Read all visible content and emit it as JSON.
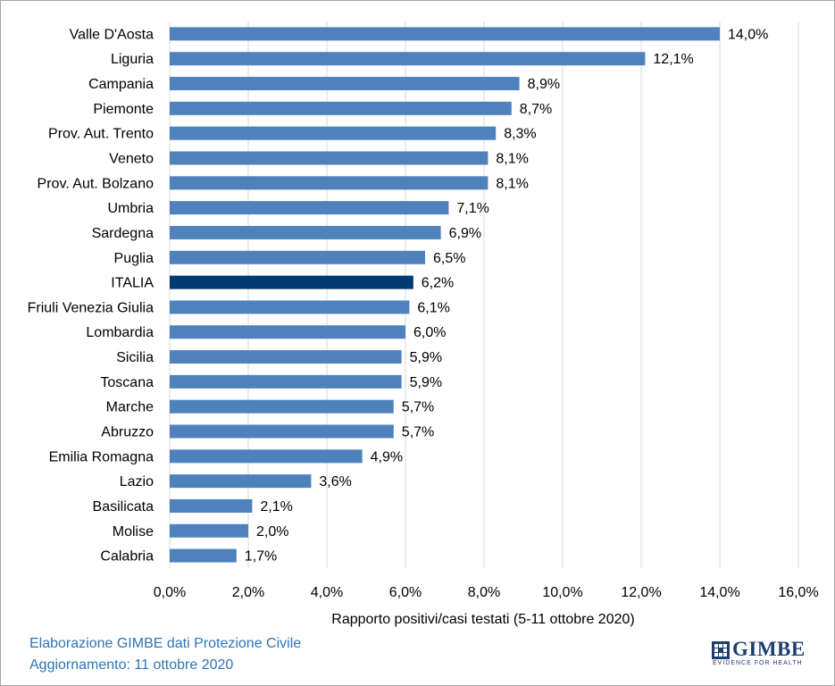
{
  "chart_data": {
    "type": "bar",
    "orientation": "horizontal",
    "categories": [
      "Valle D'Aosta",
      "Liguria",
      "Campania",
      "Piemonte",
      "Prov. Aut. Trento",
      "Veneto",
      "Prov. Aut. Bolzano",
      "Umbria",
      "Sardegna",
      "Puglia",
      "ITALIA",
      "Friuli Venezia Giulia",
      "Lombardia",
      "Sicilia",
      "Toscana",
      "Marche",
      "Abruzzo",
      "Emilia Romagna",
      "Lazio",
      "Basilicata",
      "Molise",
      "Calabria"
    ],
    "values": [
      14.0,
      12.1,
      8.9,
      8.7,
      8.3,
      8.1,
      8.1,
      7.1,
      6.9,
      6.5,
      6.2,
      6.1,
      6.0,
      5.9,
      5.9,
      5.7,
      5.7,
      4.9,
      3.6,
      2.1,
      2.0,
      1.7
    ],
    "data_labels": [
      "14,0%",
      "12,1%",
      "8,9%",
      "8,7%",
      "8,3%",
      "8,1%",
      "8,1%",
      "7,1%",
      "6,9%",
      "6,5%",
      "6,2%",
      "6,1%",
      "6,0%",
      "5,9%",
      "5,9%",
      "5,7%",
      "5,7%",
      "4,9%",
      "3,6%",
      "2,1%",
      "2,0%",
      "1,7%"
    ],
    "highlight_category": "ITALIA",
    "xlabel": "Rapporto positivi/casi testati (5-11 ottobre 2020)",
    "xlim": [
      0,
      16
    ],
    "xticks": [
      0,
      2,
      4,
      6,
      8,
      10,
      12,
      14,
      16
    ],
    "xtick_labels": [
      "0,0%",
      "2,0%",
      "4,0%",
      "6,0%",
      "8,0%",
      "10,0%",
      "12,0%",
      "14,0%",
      "16,0%"
    ],
    "grid": "vertical",
    "colors": {
      "bar": "#4f81bd",
      "highlight": "#003a70",
      "grid": "#d9d9d9",
      "text": "#000000"
    }
  },
  "footer": {
    "line1": "Elaborazione GIMBE dati Protezione Civile",
    "line2": "Aggiornamento: 11 ottobre 2020"
  },
  "logo": {
    "word": "GIMBE",
    "tagline": "EVIDENCE FOR HEALTH",
    "icon": "gimbe-logo-icon"
  }
}
